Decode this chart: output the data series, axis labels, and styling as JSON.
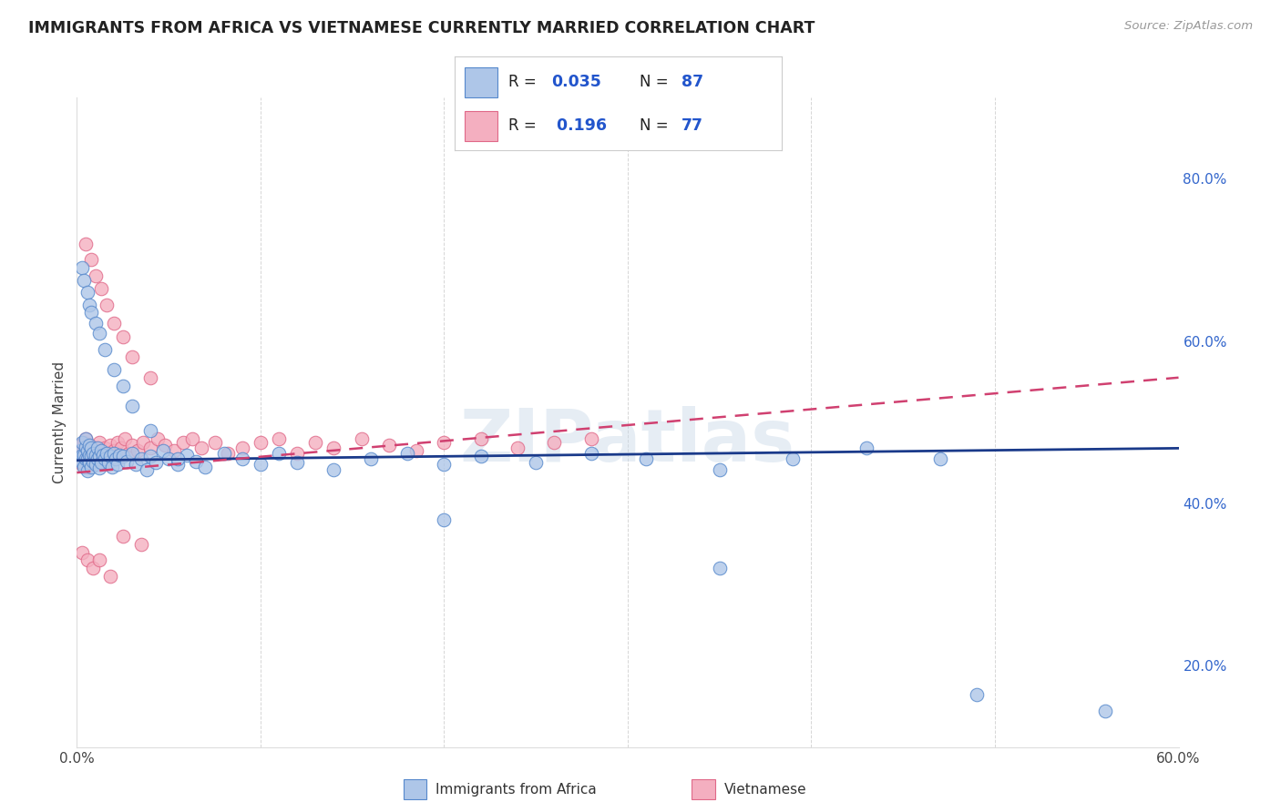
{
  "title": "IMMIGRANTS FROM AFRICA VS VIETNAMESE CURRENTLY MARRIED CORRELATION CHART",
  "source": "Source: ZipAtlas.com",
  "ylabel_label": "Currently Married",
  "xlim": [
    0.0,
    0.6
  ],
  "ylim": [
    0.1,
    0.9
  ],
  "xticks": [
    0.0,
    0.1,
    0.2,
    0.3,
    0.4,
    0.5,
    0.6
  ],
  "xticklabels": [
    "0.0%",
    "",
    "",
    "",
    "",
    "",
    "60.0%"
  ],
  "yticks_right": [
    0.2,
    0.4,
    0.6,
    0.8
  ],
  "ytick_right_labels": [
    "20.0%",
    "40.0%",
    "60.0%",
    "80.0%"
  ],
  "watermark": "ZIPatlas",
  "africa_color": "#aec6e8",
  "africa_edge": "#5588cc",
  "vietnamese_color": "#f4afc0",
  "vietnamese_edge": "#e06888",
  "africa_R": 0.035,
  "africa_N": 87,
  "vietnamese_R": 0.196,
  "vietnamese_N": 77,
  "africa_line_color": "#1a3a8a",
  "vietnamese_line_color": "#d04070",
  "africa_line_start_y": 0.453,
  "africa_line_end_y": 0.468,
  "vietnamese_line_start_y": 0.438,
  "vietnamese_line_end_y": 0.555,
  "africa_scatter_x": [
    0.002,
    0.002,
    0.003,
    0.003,
    0.003,
    0.004,
    0.004,
    0.005,
    0.005,
    0.005,
    0.006,
    0.006,
    0.006,
    0.007,
    0.007,
    0.007,
    0.008,
    0.008,
    0.008,
    0.009,
    0.009,
    0.01,
    0.01,
    0.011,
    0.011,
    0.012,
    0.012,
    0.013,
    0.013,
    0.014,
    0.015,
    0.016,
    0.017,
    0.018,
    0.019,
    0.02,
    0.021,
    0.022,
    0.023,
    0.025,
    0.027,
    0.03,
    0.032,
    0.035,
    0.038,
    0.04,
    0.043,
    0.047,
    0.05,
    0.055,
    0.06,
    0.065,
    0.07,
    0.08,
    0.09,
    0.1,
    0.11,
    0.12,
    0.14,
    0.16,
    0.18,
    0.2,
    0.22,
    0.25,
    0.28,
    0.31,
    0.35,
    0.39,
    0.43,
    0.47,
    0.003,
    0.004,
    0.006,
    0.007,
    0.008,
    0.01,
    0.012,
    0.015,
    0.02,
    0.025,
    0.03,
    0.04,
    0.055,
    0.2,
    0.35,
    0.49,
    0.56
  ],
  "africa_scatter_y": [
    0.455,
    0.465,
    0.45,
    0.46,
    0.475,
    0.445,
    0.46,
    0.455,
    0.47,
    0.48,
    0.44,
    0.455,
    0.465,
    0.45,
    0.46,
    0.472,
    0.445,
    0.458,
    0.468,
    0.452,
    0.462,
    0.448,
    0.46,
    0.455,
    0.468,
    0.444,
    0.458,
    0.45,
    0.465,
    0.46,
    0.455,
    0.462,
    0.45,
    0.458,
    0.445,
    0.462,
    0.455,
    0.448,
    0.46,
    0.458,
    0.452,
    0.462,
    0.448,
    0.455,
    0.442,
    0.458,
    0.45,
    0.465,
    0.455,
    0.448,
    0.46,
    0.452,
    0.445,
    0.462,
    0.455,
    0.448,
    0.462,
    0.45,
    0.442,
    0.455,
    0.462,
    0.448,
    0.458,
    0.45,
    0.462,
    0.455,
    0.442,
    0.455,
    0.468,
    0.455,
    0.69,
    0.675,
    0.66,
    0.645,
    0.635,
    0.622,
    0.61,
    0.59,
    0.565,
    0.545,
    0.52,
    0.49,
    0.455,
    0.38,
    0.32,
    0.165,
    0.145
  ],
  "vietnamese_scatter_x": [
    0.001,
    0.002,
    0.002,
    0.003,
    0.003,
    0.004,
    0.004,
    0.005,
    0.005,
    0.005,
    0.006,
    0.006,
    0.007,
    0.007,
    0.008,
    0.008,
    0.009,
    0.009,
    0.01,
    0.01,
    0.011,
    0.012,
    0.012,
    0.013,
    0.014,
    0.015,
    0.016,
    0.017,
    0.018,
    0.019,
    0.02,
    0.022,
    0.024,
    0.026,
    0.028,
    0.03,
    0.033,
    0.036,
    0.04,
    0.044,
    0.048,
    0.053,
    0.058,
    0.063,
    0.068,
    0.075,
    0.082,
    0.09,
    0.1,
    0.11,
    0.12,
    0.13,
    0.14,
    0.155,
    0.17,
    0.185,
    0.2,
    0.22,
    0.24,
    0.26,
    0.28,
    0.005,
    0.008,
    0.01,
    0.013,
    0.016,
    0.02,
    0.025,
    0.03,
    0.04,
    0.003,
    0.006,
    0.009,
    0.012,
    0.018,
    0.025,
    0.035
  ],
  "vietnamese_scatter_y": [
    0.455,
    0.462,
    0.472,
    0.448,
    0.465,
    0.46,
    0.475,
    0.455,
    0.468,
    0.48,
    0.445,
    0.462,
    0.458,
    0.472,
    0.448,
    0.465,
    0.455,
    0.47,
    0.45,
    0.462,
    0.468,
    0.455,
    0.475,
    0.46,
    0.452,
    0.468,
    0.462,
    0.455,
    0.472,
    0.462,
    0.465,
    0.475,
    0.468,
    0.48,
    0.462,
    0.472,
    0.465,
    0.475,
    0.468,
    0.48,
    0.472,
    0.465,
    0.475,
    0.48,
    0.468,
    0.475,
    0.462,
    0.468,
    0.475,
    0.48,
    0.462,
    0.475,
    0.468,
    0.48,
    0.472,
    0.465,
    0.475,
    0.48,
    0.468,
    0.475,
    0.48,
    0.72,
    0.7,
    0.68,
    0.665,
    0.645,
    0.622,
    0.605,
    0.58,
    0.555,
    0.34,
    0.33,
    0.32,
    0.33,
    0.31,
    0.36,
    0.35
  ]
}
